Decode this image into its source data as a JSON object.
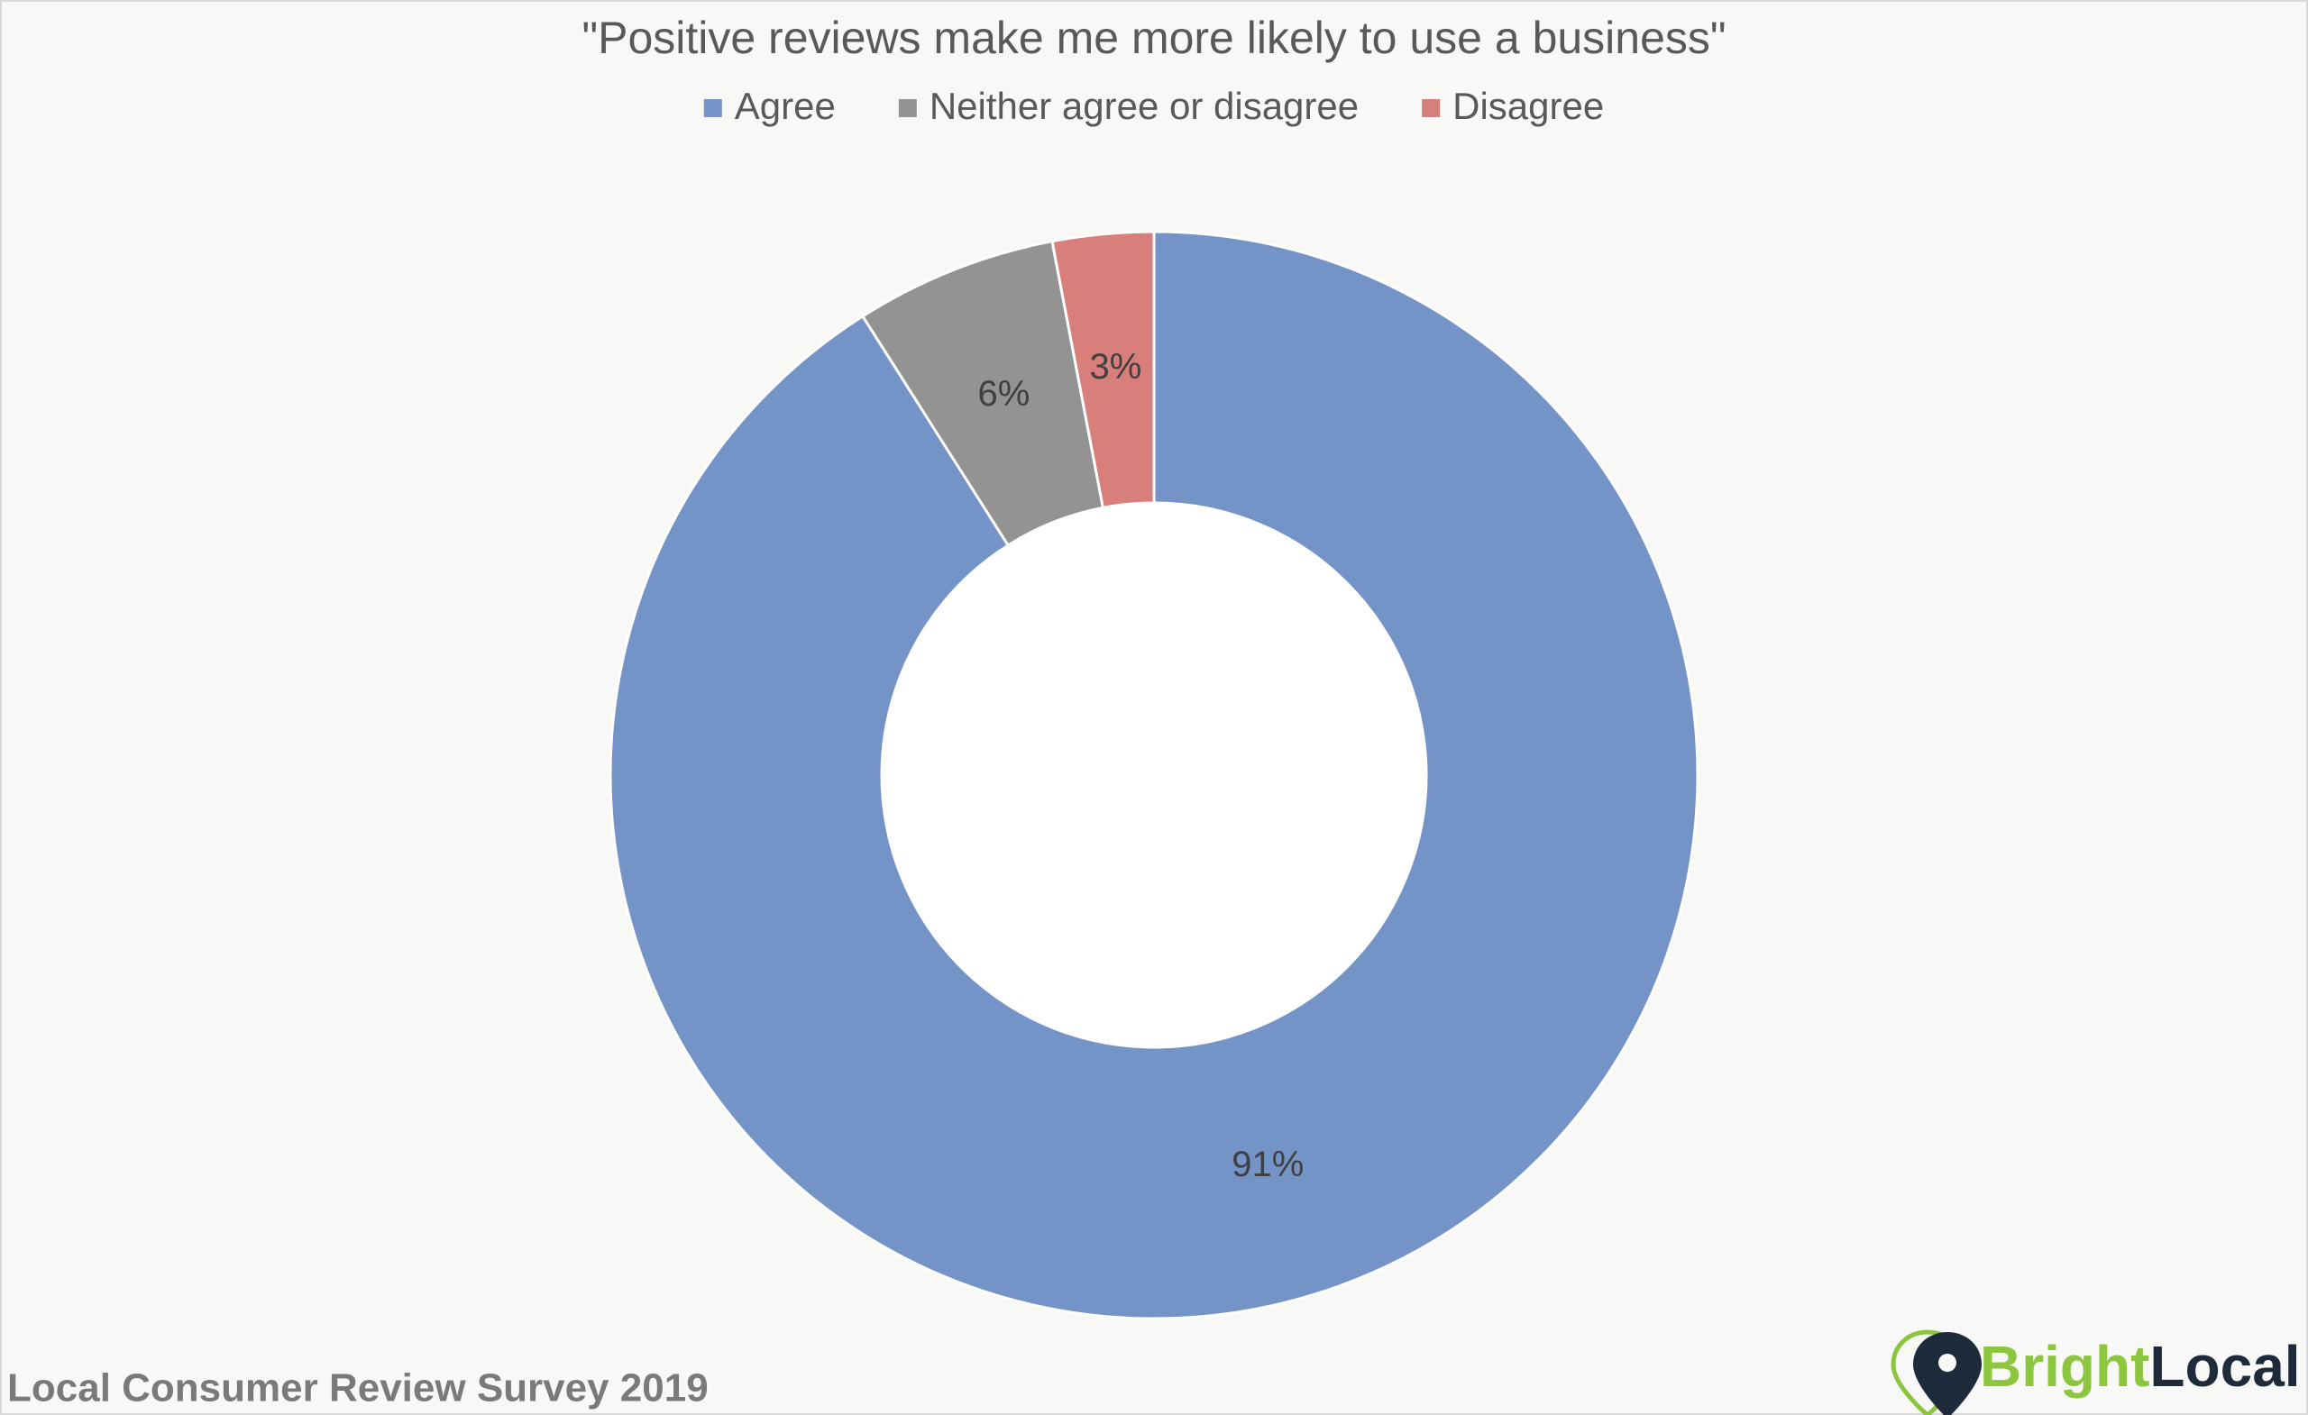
{
  "chart_data": {
    "type": "donut",
    "title": "\"Positive reviews make me more likely to use a business\"",
    "categories": [
      "Agree",
      "Neither agree or disagree",
      "Disagree"
    ],
    "values": [
      91,
      6,
      3
    ],
    "value_labels": [
      "91%",
      "6%",
      "3%"
    ],
    "colors": [
      "#7494c8",
      "#939393",
      "#d97f7b"
    ],
    "legend": "top"
  },
  "footer": {
    "source": "Local Consumer Review Survey 2019",
    "brand": [
      "Bright",
      "Local"
    ]
  }
}
